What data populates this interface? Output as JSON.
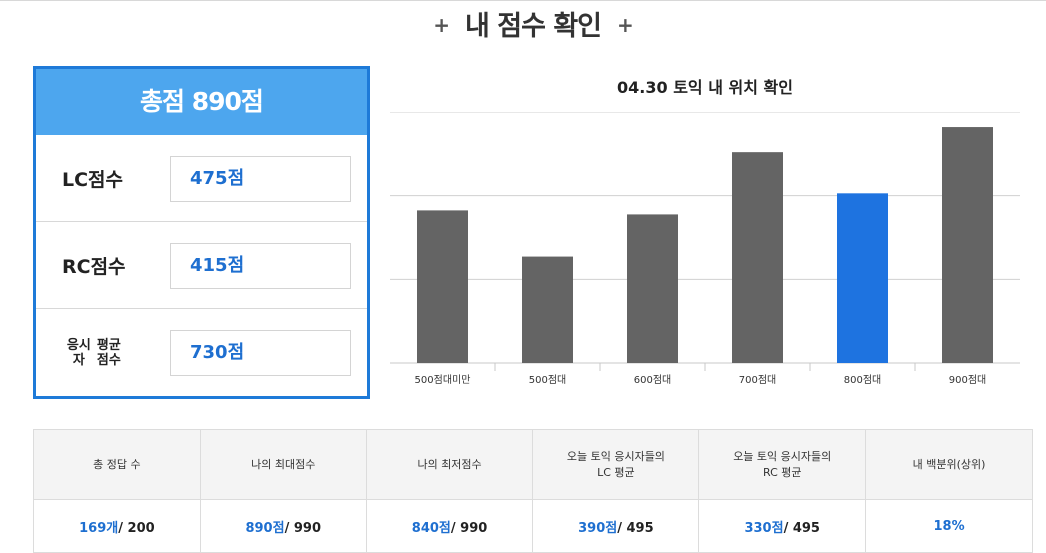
{
  "page": {
    "title": "내 점수 확인",
    "plus": "+"
  },
  "score_box": {
    "total": "총점 890점",
    "rows": [
      {
        "label": "LC점수",
        "value": "475점"
      },
      {
        "label": "RC점수",
        "value": "415점"
      },
      {
        "label_line1": "응시자",
        "label_line2": "평균점수",
        "value": "730점"
      }
    ]
  },
  "chart_data": {
    "type": "bar",
    "title": "04.30 토익 내 위치 확인",
    "categories": [
      "500점대미만",
      "500점대",
      "600점대",
      "700점대",
      "800점대",
      "900점대"
    ],
    "values": [
      152,
      106,
      148,
      210,
      169,
      235
    ],
    "ylim": [
      0,
      250
    ],
    "highlight_index": 4,
    "colors": {
      "bar": "#646464",
      "highlight": "#1e73e0",
      "grid": "#d0d0d0"
    },
    "grid": true
  },
  "stats_table": {
    "headers": [
      {
        "line1": "총 정답 수",
        "line2": ""
      },
      {
        "line1": "나의 최대점수",
        "line2": ""
      },
      {
        "line1": "나의 최저점수",
        "line2": ""
      },
      {
        "line1": "오늘 토익 응시자들의",
        "line2": "LC 평균"
      },
      {
        "line1": "오늘 토익 응시자들의",
        "line2": "RC 평균"
      },
      {
        "line1": "내 백분위(상위)",
        "line2": ""
      }
    ],
    "cells": [
      {
        "main": "169개",
        "rest": "/ 200"
      },
      {
        "main": "890점",
        "rest": "/ 990"
      },
      {
        "main": "840점",
        "rest": "/ 990"
      },
      {
        "main": "390점",
        "rest": "/ 495"
      },
      {
        "main": "330점",
        "rest": "/ 495"
      },
      {
        "main": "18%",
        "rest": ""
      }
    ]
  }
}
